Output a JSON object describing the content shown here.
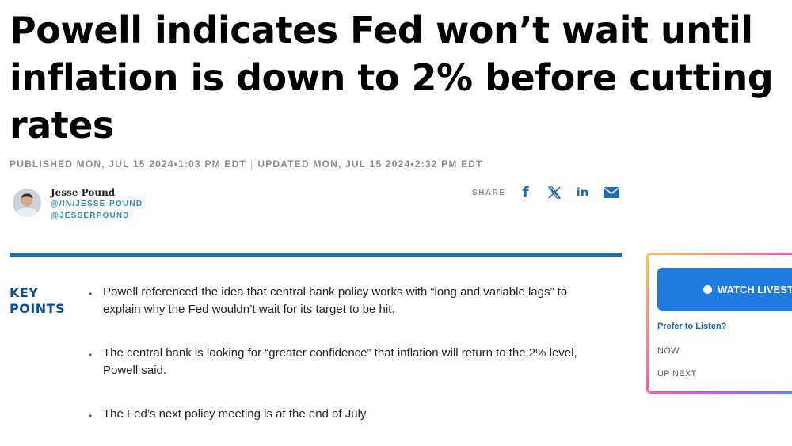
{
  "article": {
    "headline": "Powell indicates Fed won’t wait until inflation is down to 2% before cutting rates",
    "published": "PUBLISHED MON, JUL 15 2024•1:03 PM EDT",
    "separator": "|",
    "updated": "UPDATED MON, JUL 15 2024•2:32 PM EDT"
  },
  "author": {
    "name": "Jesse Pound",
    "linkedin": "@/IN/JESSE-POUND",
    "twitter": "@JESSERPOUND"
  },
  "share": {
    "label": "SHARE",
    "icons": [
      "facebook-icon",
      "x-twitter-icon",
      "linkedin-icon",
      "email-icon"
    ],
    "facebook_glyph": "f",
    "linkedin_glyph": "in",
    "accent": "#1f6eb3"
  },
  "key_points": {
    "title_line1": "KEY",
    "title_line2": "POINTS",
    "bullet": "•",
    "items": [
      "Powell referenced the idea that central bank policy works with “long and variable lags” to explain why the Fed wouldn’t wait for its target to be hit.",
      "The central bank is looking for “greater confidence” that inflation will return to the 2% level, Powell said.",
      "The Fed’s next policy meeting is at the end of July."
    ]
  },
  "live_player": {
    "watch_label": "WATCH LIVESTREAM",
    "listen_label": "Prefer to Listen?",
    "now_label": "NOW",
    "up_next_label": "UP NEXT",
    "button_color": "#1f7be0"
  }
}
